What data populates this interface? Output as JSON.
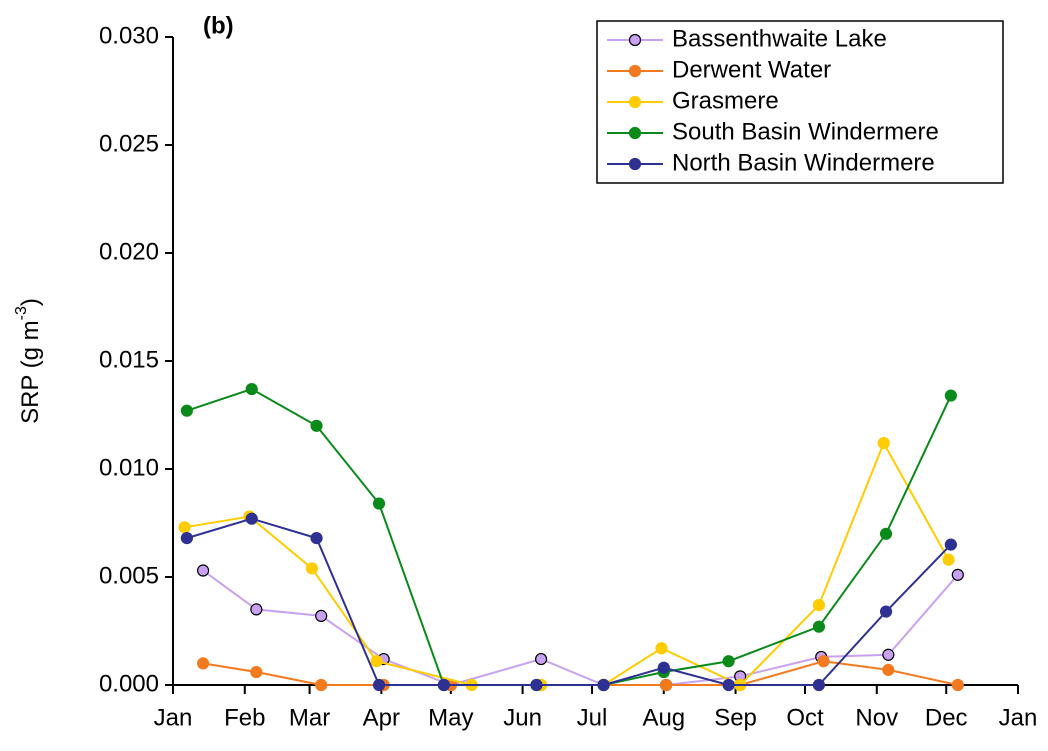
{
  "chart_data": {
    "type": "line",
    "annotation": "(b)",
    "y_label": "SRP (g m",
    "y_label_sup": "-3",
    "y_label_end": ")",
    "xlim": [
      0,
      365
    ],
    "xticks": [
      {
        "value": 0,
        "label": "Jan"
      },
      {
        "value": 31,
        "label": "Feb"
      },
      {
        "value": 59,
        "label": "Mar"
      },
      {
        "value": 90,
        "label": "Apr"
      },
      {
        "value": 120,
        "label": "May"
      },
      {
        "value": 151,
        "label": "Jun"
      },
      {
        "value": 181,
        "label": "Jul"
      },
      {
        "value": 212,
        "label": "Aug"
      },
      {
        "value": 243,
        "label": "Sep"
      },
      {
        "value": 273,
        "label": "Oct"
      },
      {
        "value": 304,
        "label": "Nov"
      },
      {
        "value": 334,
        "label": "Dec"
      },
      {
        "value": 365,
        "label": "Jan"
      }
    ],
    "ylim": [
      0,
      0.03
    ],
    "yticks": [
      {
        "value": 0,
        "label": "0.000"
      },
      {
        "value": 0.005,
        "label": "0.005"
      },
      {
        "value": 0.01,
        "label": "0.010"
      },
      {
        "value": 0.015,
        "label": "0.015"
      },
      {
        "value": 0.02,
        "label": "0.020"
      },
      {
        "value": 0.025,
        "label": "0.025"
      },
      {
        "value": 0.03,
        "label": "0.030"
      }
    ],
    "legend": "upper right",
    "series": [
      {
        "name": "Bassenthwaite Lake",
        "color": "#c8a2f0",
        "marker_edge": "#000000",
        "x": [
          13,
          36,
          64,
          91,
          120,
          159,
          186,
          213,
          245,
          280,
          309,
          339
        ],
        "values": [
          0.0053,
          0.0035,
          0.0032,
          0.0012,
          0.0,
          0.0012,
          0.0,
          0.0,
          0.0004,
          0.0013,
          0.0014,
          0.0051
        ]
      },
      {
        "name": "Derwent Water",
        "color": "#f47a20",
        "x": [
          13,
          36,
          64,
          91,
          120,
          159,
          186,
          213,
          245,
          281,
          309,
          339
        ],
        "values": [
          0.001,
          0.0006,
          0.0,
          0.0,
          0.0,
          0.0,
          0.0,
          0.0,
          0.0,
          0.0011,
          0.0007,
          0.0
        ]
      },
      {
        "name": "Grasmere",
        "color": "#ffcc00",
        "x": [
          5,
          33,
          60,
          88,
          129,
          159,
          186,
          211,
          245,
          279,
          307,
          335
        ],
        "values": [
          0.0073,
          0.0078,
          0.0054,
          0.0011,
          0.0,
          0.0,
          0.0,
          0.0017,
          0.0,
          0.0037,
          0.0112,
          0.0058
        ]
      },
      {
        "name": "South Basin Windermere",
        "color": "#0a8a1a",
        "x": [
          6,
          34,
          62,
          89,
          117,
          157,
          186,
          212,
          240,
          279,
          308,
          336
        ],
        "values": [
          0.0127,
          0.0137,
          0.012,
          0.0084,
          0.0,
          0.0,
          0.0,
          0.0006,
          0.0011,
          0.0027,
          0.007,
          0.0134
        ]
      },
      {
        "name": "North Basin Windermere",
        "color": "#2e3192",
        "x": [
          6,
          34,
          62,
          89,
          117,
          157,
          186,
          212,
          240,
          279,
          308,
          336
        ],
        "values": [
          0.0068,
          0.0077,
          0.0068,
          0.0,
          0.0,
          0.0,
          0.0,
          0.0008,
          0.0,
          0.0,
          0.0034,
          0.0065
        ]
      }
    ]
  }
}
